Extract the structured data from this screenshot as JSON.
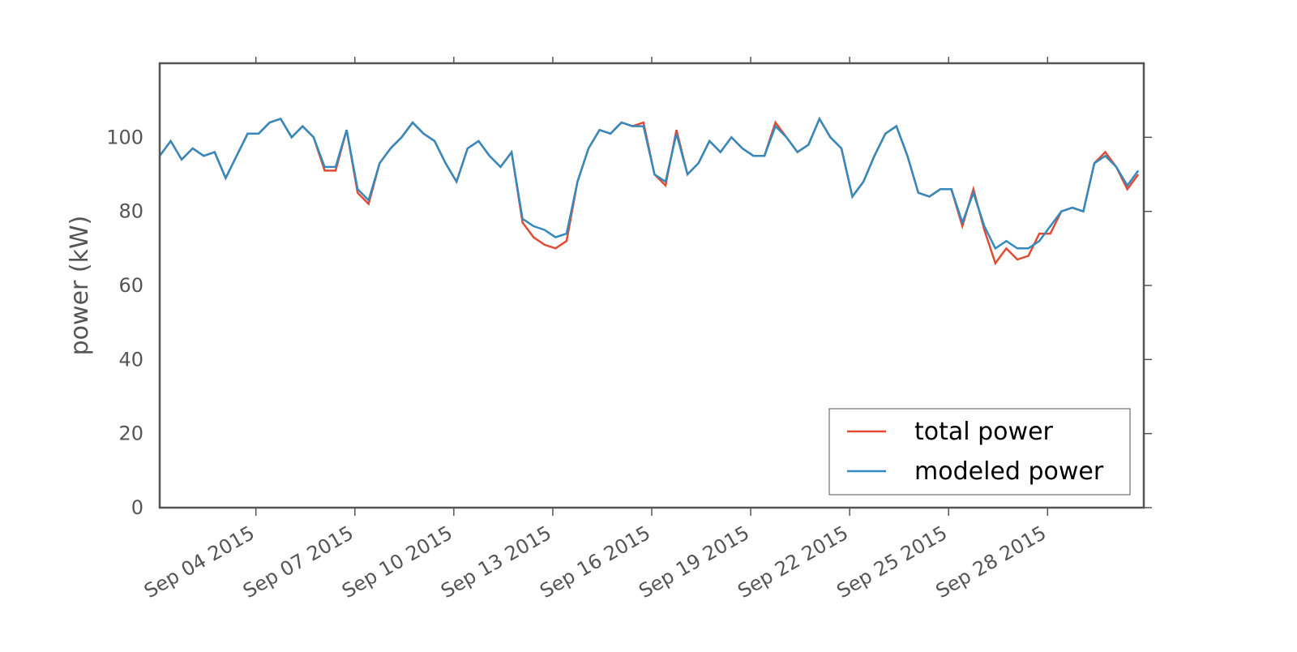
{
  "chart_data": {
    "type": "line",
    "ylabel": "power (kW)",
    "x": [
      "2015-09-01T02:00",
      "2015-09-01T10:00",
      "2015-09-01T18:00",
      "2015-09-02T02:00",
      "2015-09-02T10:00",
      "2015-09-02T18:00",
      "2015-09-03T02:00",
      "2015-09-03T10:00",
      "2015-09-03T18:00",
      "2015-09-04T02:00",
      "2015-09-04T10:00",
      "2015-09-04T18:00",
      "2015-09-05T02:00",
      "2015-09-05T10:00",
      "2015-09-05T18:00",
      "2015-09-06T02:00",
      "2015-09-06T10:00",
      "2015-09-06T18:00",
      "2015-09-07T02:00",
      "2015-09-07T10:00",
      "2015-09-07T18:00",
      "2015-09-08T02:00",
      "2015-09-08T10:00",
      "2015-09-08T18:00",
      "2015-09-09T02:00",
      "2015-09-09T10:00",
      "2015-09-09T18:00",
      "2015-09-10T02:00",
      "2015-09-10T10:00",
      "2015-09-10T18:00",
      "2015-09-11T02:00",
      "2015-09-11T10:00",
      "2015-09-11T18:00",
      "2015-09-12T02:00",
      "2015-09-12T10:00",
      "2015-09-12T18:00",
      "2015-09-13T02:00",
      "2015-09-13T10:00",
      "2015-09-13T18:00",
      "2015-09-14T02:00",
      "2015-09-14T10:00",
      "2015-09-14T18:00",
      "2015-09-15T02:00",
      "2015-09-15T10:00",
      "2015-09-15T18:00",
      "2015-09-16T02:00",
      "2015-09-16T10:00",
      "2015-09-16T18:00",
      "2015-09-17T02:00",
      "2015-09-17T10:00",
      "2015-09-17T18:00",
      "2015-09-18T02:00",
      "2015-09-18T10:00",
      "2015-09-18T18:00",
      "2015-09-19T02:00",
      "2015-09-19T10:00",
      "2015-09-19T18:00",
      "2015-09-20T02:00",
      "2015-09-20T10:00",
      "2015-09-20T18:00",
      "2015-09-21T02:00",
      "2015-09-21T10:00",
      "2015-09-21T18:00",
      "2015-09-22T02:00",
      "2015-09-22T10:00",
      "2015-09-22T18:00",
      "2015-09-23T02:00",
      "2015-09-23T10:00",
      "2015-09-23T18:00",
      "2015-09-24T02:00",
      "2015-09-24T10:00",
      "2015-09-24T18:00",
      "2015-09-25T02:00",
      "2015-09-25T10:00",
      "2015-09-25T18:00",
      "2015-09-26T02:00",
      "2015-09-26T10:00",
      "2015-09-26T18:00",
      "2015-09-27T02:00",
      "2015-09-27T10:00",
      "2015-09-27T18:00",
      "2015-09-28T02:00",
      "2015-09-28T10:00",
      "2015-09-28T18:00",
      "2015-09-29T02:00",
      "2015-09-29T10:00",
      "2015-09-29T18:00",
      "2015-09-30T02:00",
      "2015-09-30T10:00",
      "2015-09-30T18:00"
    ],
    "series": [
      {
        "name": "total power",
        "color": "#e24a33",
        "values": [
          95,
          99,
          94,
          97,
          95,
          96,
          89,
          95,
          101,
          101,
          104,
          105,
          100,
          103,
          100,
          91,
          91,
          102,
          85,
          82,
          93,
          97,
          100,
          104,
          101,
          99,
          93,
          88,
          97,
          99,
          95,
          92,
          96,
          77,
          73,
          71,
          70,
          72,
          88,
          97,
          102,
          101,
          104,
          103,
          104,
          90,
          87,
          102,
          90,
          93,
          99,
          96,
          100,
          97,
          95,
          95,
          104,
          100,
          96,
          98,
          105,
          100,
          97,
          84,
          88,
          95,
          101,
          103,
          95,
          85,
          84,
          86,
          86,
          76,
          86,
          75,
          66,
          70,
          67,
          68,
          74,
          74,
          80,
          81,
          80,
          93,
          96,
          92,
          86,
          90
        ]
      },
      {
        "name": "modeled power",
        "color": "#348abd",
        "values": [
          95,
          99,
          94,
          97,
          95,
          96,
          89,
          95,
          101,
          101,
          104,
          105,
          100,
          103,
          100,
          92,
          92,
          102,
          86,
          83,
          93,
          97,
          100,
          104,
          101,
          99,
          93,
          88,
          97,
          99,
          95,
          92,
          96,
          78,
          76,
          75,
          73,
          74,
          88,
          97,
          102,
          101,
          104,
          103,
          103,
          90,
          88,
          101,
          90,
          93,
          99,
          96,
          100,
          97,
          95,
          95,
          103,
          100,
          96,
          98,
          105,
          100,
          97,
          84,
          88,
          95,
          101,
          103,
          95,
          85,
          84,
          86,
          86,
          77,
          85,
          76,
          70,
          72,
          70,
          70,
          72,
          76,
          80,
          81,
          80,
          93,
          95,
          92,
          87,
          91
        ]
      }
    ],
    "xlim": [
      "2015-09-01T02:00",
      "2015-09-30T22:00"
    ],
    "xticks": [
      {
        "value": "2015-09-04T00:00",
        "label": "Sep 04 2015"
      },
      {
        "value": "2015-09-07T00:00",
        "label": "Sep 07 2015"
      },
      {
        "value": "2015-09-10T00:00",
        "label": "Sep 10 2015"
      },
      {
        "value": "2015-09-13T00:00",
        "label": "Sep 13 2015"
      },
      {
        "value": "2015-09-16T00:00",
        "label": "Sep 16 2015"
      },
      {
        "value": "2015-09-19T00:00",
        "label": "Sep 19 2015"
      },
      {
        "value": "2015-09-22T00:00",
        "label": "Sep 22 2015"
      },
      {
        "value": "2015-09-25T00:00",
        "label": "Sep 25 2015"
      },
      {
        "value": "2015-09-28T00:00",
        "label": "Sep 28 2015"
      }
    ],
    "ylim": [
      0,
      120
    ],
    "yticks": [
      0,
      20,
      40,
      60,
      80,
      100
    ],
    "legend": "lower right"
  }
}
